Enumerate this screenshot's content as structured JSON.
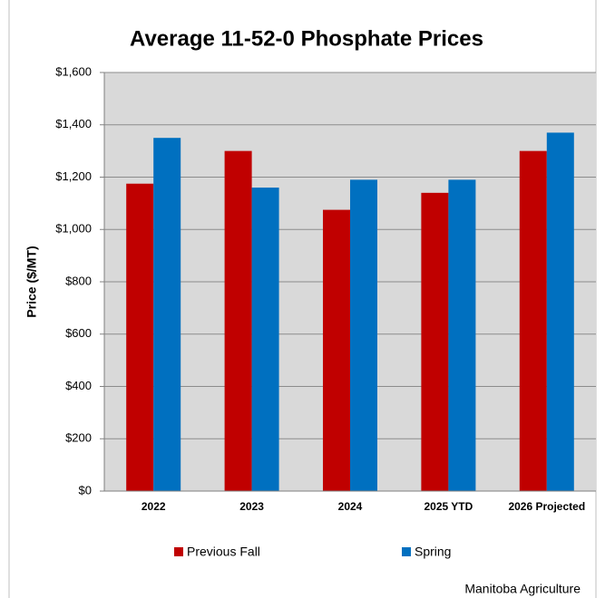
{
  "chart_data": {
    "type": "bar",
    "title": "Average 11-52-0 Phosphate Prices",
    "y_label": "Price ($/MT)",
    "source": "Manitoba Agriculture",
    "categories": [
      "2022",
      "2023",
      "2024",
      "2025 YTD",
      "2026 Projected"
    ],
    "series": [
      {
        "name": "Previous Fall",
        "color": "#c00000",
        "values": [
          1175,
          1300,
          1075,
          1140,
          1300
        ]
      },
      {
        "name": "Spring",
        "color": "#0070c0",
        "values": [
          1350,
          1160,
          1190,
          1190,
          1370
        ]
      }
    ],
    "ylim": [
      0,
      1600
    ],
    "yticks": [
      {
        "value": 0,
        "label": "$0"
      },
      {
        "value": 200,
        "label": "$200"
      },
      {
        "value": 400,
        "label": "$400"
      },
      {
        "value": 600,
        "label": "$600"
      },
      {
        "value": 800,
        "label": "$800"
      },
      {
        "value": 1000,
        "label": "$1,000"
      },
      {
        "value": 1200,
        "label": "$1,200"
      },
      {
        "value": 1400,
        "label": "$1,400"
      },
      {
        "value": 1600,
        "label": "$1,600"
      }
    ],
    "grid": true,
    "legend": "bottom"
  }
}
